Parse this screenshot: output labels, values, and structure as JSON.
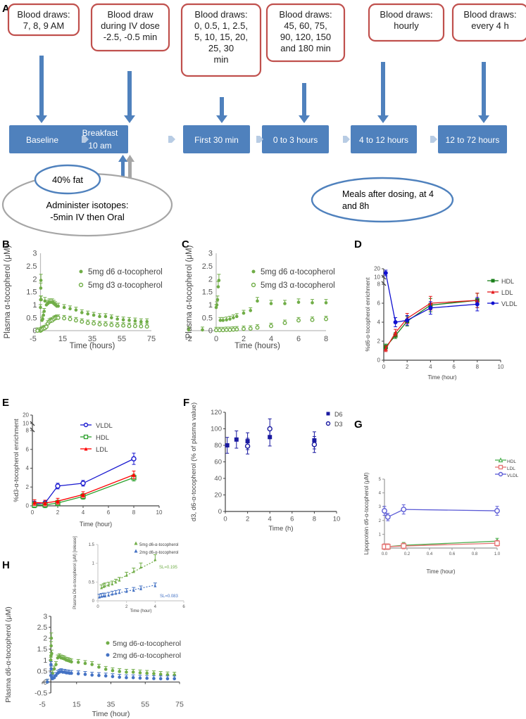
{
  "panel_labels": [
    "A",
    "B",
    "C",
    "D",
    "E",
    "F",
    "G",
    "H"
  ],
  "panel_a": {
    "blood_draw_boxes": [
      [
        "Blood draws:",
        "7, 8, 9 AM"
      ],
      [
        "Blood draw",
        "during IV dose",
        "-2.5, -0.5 min"
      ],
      [
        "Blood draws:",
        "0, 0.5, 1, 2.5,",
        "5, 10, 15, 20,",
        "25, 30",
        "min"
      ],
      [
        "Blood draws:",
        "45, 60, 75,",
        "90, 120, 150",
        "and 180 min"
      ],
      [
        "Blood draws:",
        "hourly"
      ],
      [
        "Blood draws:",
        "every 4 h"
      ]
    ],
    "phases": [
      [
        "Baseline"
      ],
      [
        "Breakfast",
        "10 am"
      ],
      [
        "First 30 min"
      ],
      [
        "0 to 3 hours"
      ],
      [
        "4 to 12 hours"
      ],
      [
        "12 to 72 hours"
      ]
    ],
    "fat_label": "40% fat",
    "isotope_label": [
      "Administer isotopes:",
      "-5min IV then Oral"
    ],
    "meals_label": [
      "Meals after dosing, at 4",
      "and 8h"
    ],
    "colors": {
      "box_border": "#c0504d",
      "phase_fill": "#4f81bd",
      "chevron": "#b8cce4",
      "grey": "#a6a6a6"
    }
  },
  "chart_data": [
    {
      "panel": "B",
      "type": "scatter",
      "title": "",
      "xlabel": "Time (hours)",
      "ylabel": "Plasma α-tocopherol (μM)",
      "xlim": [
        -5,
        75
      ],
      "ylim": [
        0,
        3
      ],
      "xticks": [
        -5,
        15,
        35,
        55,
        75
      ],
      "yticks": [
        0,
        0.5,
        1,
        1.5,
        2,
        2.5,
        3
      ],
      "legend": "top-right",
      "series": [
        {
          "name": "5mg d6 α-tocopherol",
          "marker": "filled-circle",
          "color": "#70ad47",
          "x": [
            -2,
            -1,
            0,
            0.1,
            0.2,
            0.3,
            0.5,
            1,
            1.5,
            2,
            2.5,
            3,
            4,
            5,
            6,
            7,
            8,
            9,
            10,
            11,
            12,
            16,
            20,
            24,
            28,
            32,
            36,
            40,
            44,
            48,
            52,
            56,
            60,
            64,
            68,
            72
          ],
          "y": [
            0,
            0,
            0.9,
            1.2,
            1.65,
            1.95,
            1.2,
            0.4,
            0.45,
            0.6,
            0.75,
            1.15,
            1.0,
            1.05,
            1.1,
            1.1,
            1.1,
            1.05,
            1.0,
            0.95,
            0.95,
            0.9,
            0.85,
            0.8,
            0.7,
            0.65,
            0.6,
            0.55,
            0.55,
            0.5,
            0.45,
            0.42,
            0.4,
            0.38,
            0.35,
            0.35
          ]
        },
        {
          "name": "5mg d3 α-tocopherol",
          "marker": "open-circle",
          "color": "#70ad47",
          "x": [
            -2,
            0,
            0.5,
            1,
            2,
            3,
            4,
            5,
            6,
            7,
            8,
            9,
            10,
            11,
            12,
            16,
            20,
            24,
            28,
            32,
            36,
            40,
            44,
            48,
            52,
            56,
            60,
            64,
            68,
            72
          ],
          "y": [
            0,
            0,
            0.02,
            0.05,
            0.08,
            0.1,
            0.15,
            0.28,
            0.35,
            0.38,
            0.4,
            0.45,
            0.48,
            0.5,
            0.5,
            0.48,
            0.45,
            0.4,
            0.35,
            0.3,
            0.28,
            0.25,
            0.24,
            0.22,
            0.2,
            0.2,
            0.18,
            0.18,
            0.17,
            0.16
          ]
        }
      ]
    },
    {
      "panel": "C",
      "type": "scatter",
      "title": "",
      "xlabel": "Time (hours)",
      "ylabel": "Plasma α-tocopherol (μM)",
      "xlim": [
        -2,
        8
      ],
      "ylim": [
        0,
        3
      ],
      "xticks": [
        -2,
        0,
        2,
        4,
        6,
        8
      ],
      "yticks": [
        0,
        0.5,
        1,
        1.5,
        2,
        2.5,
        3
      ],
      "legend": "top-right",
      "series": [
        {
          "name": "5mg d6 α-tocopherol",
          "marker": "filled-circle",
          "color": "#70ad47",
          "x": [
            -2,
            -1,
            0,
            0.05,
            0.1,
            0.15,
            0.2,
            0.3,
            0.5,
            0.75,
            1,
            1.25,
            1.5,
            2,
            2.5,
            3,
            4,
            5,
            6,
            7,
            8
          ],
          "y": [
            0.03,
            0.03,
            0.9,
            1.0,
            1.2,
            1.7,
            1.95,
            0.4,
            0.4,
            0.42,
            0.45,
            0.5,
            0.55,
            0.68,
            0.78,
            1.15,
            1.05,
            1.05,
            1.1,
            1.08,
            1.08
          ]
        },
        {
          "name": "5mg d3 α-tocopherol",
          "marker": "open-circle",
          "color": "#70ad47",
          "x": [
            0,
            0.25,
            0.5,
            0.75,
            1,
            1.25,
            1.5,
            2,
            2.5,
            3,
            4,
            5,
            6,
            7,
            8
          ],
          "y": [
            0.02,
            0.02,
            0.02,
            0.03,
            0.03,
            0.04,
            0.05,
            0.07,
            0.08,
            0.12,
            0.18,
            0.3,
            0.4,
            0.42,
            0.45
          ]
        }
      ]
    },
    {
      "panel": "D",
      "type": "line",
      "title": "",
      "xlabel": "Time (hour)",
      "ylabel": "%d6-α-tocopherol enrichment",
      "xlim": [
        0,
        10
      ],
      "ylim": [
        0,
        8
      ],
      "broken_axis_top": [
        10,
        20
      ],
      "xticks": [
        0,
        2,
        4,
        6,
        8,
        10
      ],
      "yticks": [
        0,
        2,
        4,
        6,
        8,
        10,
        20
      ],
      "legend": "top-right",
      "x": [
        0.17,
        1,
        2,
        4,
        8
      ],
      "series": [
        {
          "name": "HDL",
          "marker": "square",
          "color": "#1a7f1a",
          "values": [
            1.4,
            2.6,
            4.1,
            5.8,
            6.3
          ]
        },
        {
          "name": "LDL",
          "marker": "triangle",
          "color": "#e31a1c",
          "values": [
            1.2,
            2.9,
            4.4,
            6.0,
            6.3
          ]
        },
        {
          "name": "VLDL",
          "marker": "circle",
          "color": "#1010d0",
          "values": [
            15,
            4.0,
            4.2,
            5.5,
            5.9
          ]
        }
      ]
    },
    {
      "panel": "E",
      "type": "line",
      "title": "",
      "xlabel": "Time (hour)",
      "ylabel": "%d3-α-tocopherol enrichment",
      "xlim": [
        0,
        10
      ],
      "ylim": [
        0,
        8
      ],
      "broken_axis_top": [
        10,
        20
      ],
      "xticks": [
        0,
        2,
        4,
        6,
        8,
        10
      ],
      "yticks": [
        0,
        2,
        4,
        6,
        8,
        10,
        20
      ],
      "legend": "top-center",
      "x": [
        0.17,
        1,
        2,
        4,
        8
      ],
      "series": [
        {
          "name": "VLDL",
          "marker": "open-circle",
          "color": "#1a1ad0",
          "values": [
            0.2,
            0.3,
            2.1,
            2.4,
            5.0
          ]
        },
        {
          "name": "HDL",
          "marker": "open-square",
          "color": "#2ca02c",
          "values": [
            0.1,
            0.1,
            0.3,
            1.0,
            3.0
          ]
        },
        {
          "name": "LDL",
          "marker": "filled-triangle",
          "color": "#ff0000",
          "values": [
            0.35,
            0.3,
            0.5,
            1.2,
            3.3
          ]
        }
      ]
    },
    {
      "panel": "F",
      "type": "scatter",
      "title": "",
      "xlabel": "Time (h)",
      "ylabel": "d3, d6-α-tocopherol (% of plasma value)",
      "xlim": [
        0,
        10
      ],
      "ylim": [
        0,
        120
      ],
      "xticks": [
        0,
        2,
        4,
        6,
        8,
        10
      ],
      "yticks": [
        0,
        20,
        40,
        60,
        80,
        100,
        120
      ],
      "legend": "top-right",
      "series": [
        {
          "name": "D6",
          "marker": "filled-square",
          "color": "#1a1aa0",
          "x": [
            0.17,
            1,
            2,
            4,
            8
          ],
          "values": [
            80,
            87,
            85,
            90,
            86
          ]
        },
        {
          "name": "D3",
          "marker": "open-circle",
          "color": "#1a1aa0",
          "x": [
            2,
            4,
            8
          ],
          "values": [
            79,
            100,
            81
          ]
        }
      ]
    },
    {
      "panel": "G",
      "type": "line",
      "title": "",
      "xlabel": "Time (hour)",
      "ylabel": "Lipoprotein d6-α-tocopherol (μM)",
      "xlim": [
        0,
        1.0
      ],
      "ylim": [
        0,
        5
      ],
      "xticks": [
        0.0,
        0.2,
        0.4,
        0.6,
        0.8,
        1.0
      ],
      "yticks": [
        1,
        2,
        3,
        4,
        5
      ],
      "legend": "right",
      "x": [
        0.0,
        0.03,
        0.17,
        1.0
      ],
      "series": [
        {
          "name": "HDL",
          "marker": "open-triangle",
          "color": "#4caf50",
          "values": [
            0.1,
            0.1,
            0.2,
            0.5
          ]
        },
        {
          "name": "LDL",
          "marker": "open-square",
          "color": "#e57373",
          "values": [
            0.1,
            0.1,
            0.15,
            0.35
          ]
        },
        {
          "name": "VLDL",
          "marker": "open-circle",
          "color": "#5b5bd6",
          "values": [
            2.7,
            2.25,
            2.8,
            2.7
          ]
        }
      ]
    },
    {
      "panel": "H",
      "type": "scatter",
      "title": "",
      "xlabel": "Time (hour)",
      "ylabel": "Plasma d6-α-tocopherol (μM)",
      "xlim": [
        -5,
        75
      ],
      "ylim": [
        -0.5,
        3
      ],
      "xticks": [
        -5,
        15,
        35,
        55,
        75
      ],
      "yticks": [
        -0.5,
        0,
        0.5,
        1,
        1.5,
        2,
        2.5,
        3
      ],
      "legend": "right",
      "series": [
        {
          "name": "5mg d6-α-tocopherol",
          "marker": "filled-circle",
          "color": "#70ad47",
          "x": [
            -2,
            0,
            0.1,
            0.2,
            0.3,
            0.5,
            1,
            2,
            3,
            4,
            5,
            6,
            7,
            8,
            9,
            10,
            11,
            12,
            16,
            20,
            24,
            28,
            32,
            36,
            40,
            44,
            48,
            52,
            56,
            60,
            64,
            68,
            72
          ],
          "y": [
            0,
            1.0,
            1.2,
            1.65,
            2.0,
            1.3,
            0.4,
            0.6,
            0.8,
            1.1,
            1.15,
            1.1,
            1.08,
            1.05,
            1.0,
            0.98,
            0.95,
            0.92,
            0.9,
            0.85,
            0.8,
            0.68,
            0.58,
            0.52,
            0.48,
            0.45,
            0.45,
            0.42,
            0.4,
            0.38,
            0.35,
            0.33,
            0.32
          ]
        },
        {
          "name": "2mg d6-α-tocopherol",
          "marker": "filled-circle",
          "color": "#4472c4",
          "x": [
            -2,
            0,
            0.1,
            0.2,
            0.5,
            1,
            2,
            3,
            4,
            5,
            6,
            7,
            8,
            9,
            10,
            11,
            12,
            16,
            20,
            24,
            28,
            32,
            36,
            40,
            44,
            48,
            52,
            56,
            60,
            64,
            68,
            72
          ],
          "y": [
            0,
            0.3,
            0.8,
            0.6,
            0.2,
            0.15,
            0.2,
            0.3,
            0.4,
            0.45,
            0.48,
            0.45,
            0.45,
            0.42,
            0.42,
            0.4,
            0.4,
            0.38,
            0.35,
            0.32,
            0.3,
            0.28,
            0.25,
            0.22,
            0.2,
            0.2,
            0.18,
            0.17,
            0.16,
            0.15,
            0.15,
            0.15
          ]
        }
      ]
    },
    {
      "panel": "H-inset",
      "type": "scatter",
      "title": "",
      "xlabel": "Time (hour)",
      "ylabel": "Plasma D6-α-tocopherol (μM) [release]",
      "xlim": [
        0,
        6
      ],
      "ylim": [
        0,
        1.5
      ],
      "xticks": [
        0,
        2,
        4,
        6
      ],
      "yticks": [
        0,
        0.5,
        1,
        1.5
      ],
      "legend": "top-right",
      "annotations": [
        "SL=0.195",
        "SL=0.083"
      ],
      "series": [
        {
          "name": "5mg d6-α-tocopherol",
          "marker": "filled-triangle",
          "color": "#70ad47",
          "trend": "dotted-linear",
          "slope": 0.195,
          "x": [
            0.25,
            0.4,
            0.5,
            0.75,
            1,
            1.25,
            1.5,
            2,
            2.5,
            3,
            4
          ],
          "y": [
            0.35,
            0.38,
            0.4,
            0.42,
            0.45,
            0.5,
            0.55,
            0.68,
            0.78,
            0.9,
            1.1
          ]
        },
        {
          "name": "2mg d6-α-tocopherol",
          "marker": "filled-triangle",
          "color": "#4472c4",
          "trend": "dotted-linear",
          "slope": 0.083,
          "x": [
            0.1,
            0.25,
            0.4,
            0.5,
            0.75,
            1,
            1.25,
            1.5,
            2,
            2.5,
            3,
            4
          ],
          "y": [
            0.1,
            0.12,
            0.13,
            0.13,
            0.15,
            0.18,
            0.2,
            0.22,
            0.25,
            0.28,
            0.32,
            0.4
          ]
        }
      ]
    }
  ]
}
